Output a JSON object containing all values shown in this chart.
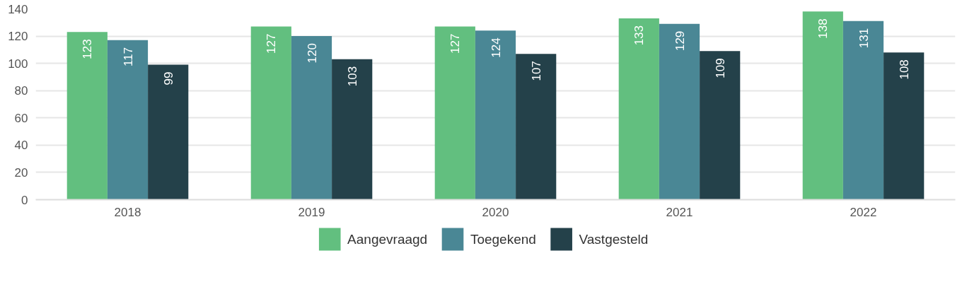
{
  "chart_data": {
    "type": "bar",
    "categories": [
      "2018",
      "2019",
      "2020",
      "2021",
      "2022"
    ],
    "series": [
      {
        "name": "Aangevraagd",
        "color": "#62bf7f",
        "values": [
          123,
          127,
          127,
          133,
          138
        ]
      },
      {
        "name": "Toegekend",
        "color": "#4a8795",
        "values": [
          117,
          120,
          124,
          129,
          131
        ]
      },
      {
        "name": "Vastgesteld",
        "color": "#24414a",
        "values": [
          99,
          103,
          107,
          109,
          108
        ]
      }
    ],
    "ylim": [
      0,
      140
    ],
    "yticks": [
      0,
      20,
      40,
      60,
      80,
      100,
      120,
      140
    ],
    "grid": "y",
    "legend": "bottom",
    "data_labels": true
  }
}
